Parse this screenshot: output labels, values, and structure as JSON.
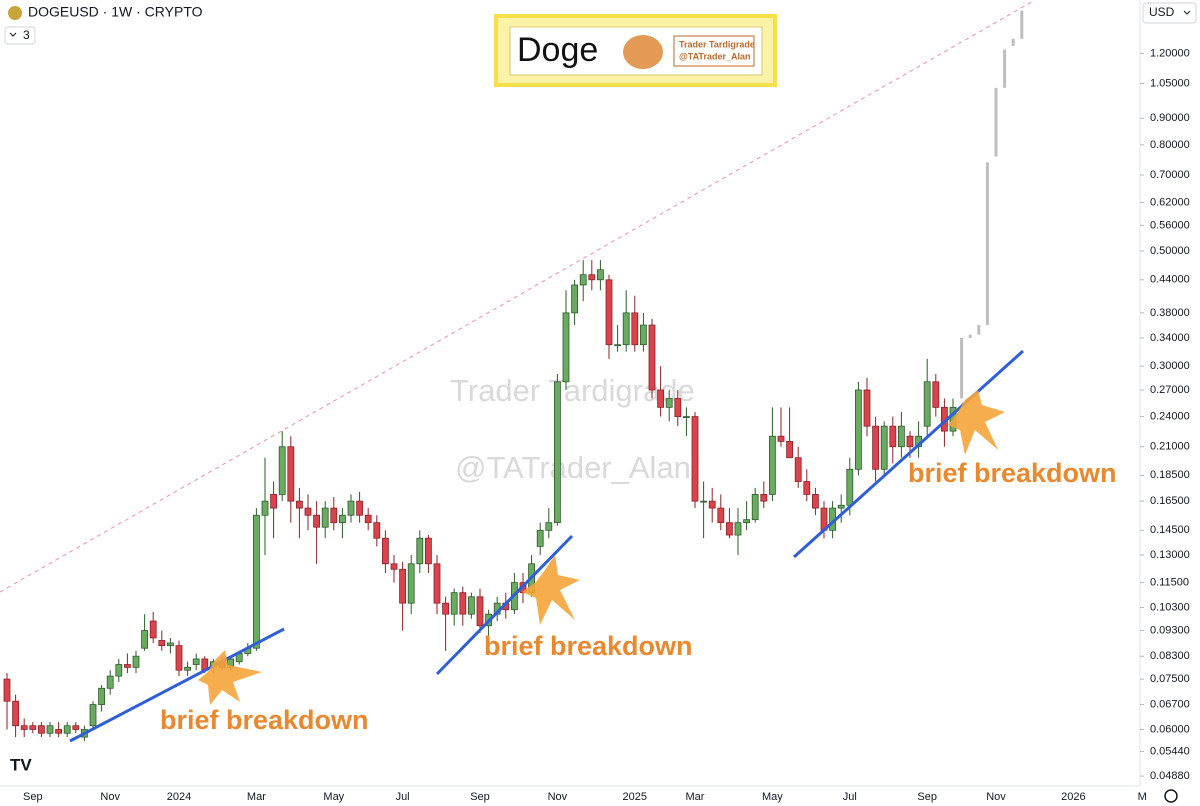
{
  "header": {
    "symbol": "DOGEUSD · 1W · CRYPTO",
    "indicator_count": 3,
    "currency": "USD"
  },
  "logo": {
    "title": "Doge",
    "line1": "Trader Tardigrade",
    "line2": "@TATrader_Alan"
  },
  "watermark": [
    "Trader Tardigrade",
    "@TATrader_Alan"
  ],
  "chart_data": {
    "type": "candlestick",
    "log_scale": true,
    "up_color": "#6aab62",
    "down_color": "#d9434b",
    "projection_color": "#bdbdbd",
    "annotations": [
      "brief breakdown",
      "brief breakdown",
      "brief breakdown"
    ],
    "ylim": [
      0.0467,
      1.52
    ],
    "yticks": [
      {
        "value": 0.0488,
        "label": "0.04880"
      },
      {
        "value": 0.0544,
        "label": "0.05440"
      },
      {
        "value": 0.06,
        "label": "0.06000"
      },
      {
        "value": 0.067,
        "label": "0.06700"
      },
      {
        "value": 0.075,
        "label": "0.07500"
      },
      {
        "value": 0.083,
        "label": "0.08300"
      },
      {
        "value": 0.093,
        "label": "0.09300"
      },
      {
        "value": 0.103,
        "label": "0.10300"
      },
      {
        "value": 0.115,
        "label": "0.11500"
      },
      {
        "value": 0.13,
        "label": "0.13000"
      },
      {
        "value": 0.145,
        "label": "0.14500"
      },
      {
        "value": 0.165,
        "label": "0.16500"
      },
      {
        "value": 0.185,
        "label": "0.18500"
      },
      {
        "value": 0.21,
        "label": "0.21000"
      },
      {
        "value": 0.24,
        "label": "0.24000"
      },
      {
        "value": 0.27,
        "label": "0.27000"
      },
      {
        "value": 0.3,
        "label": "0.30000"
      },
      {
        "value": 0.34,
        "label": "0.34000"
      },
      {
        "value": 0.38,
        "label": "0.38000"
      },
      {
        "value": 0.44,
        "label": "0.44000"
      },
      {
        "value": 0.5,
        "label": "0.50000"
      },
      {
        "value": 0.56,
        "label": "0.56000"
      },
      {
        "value": 0.62,
        "label": "0.62000"
      },
      {
        "value": 0.7,
        "label": "0.70000"
      },
      {
        "value": 0.8,
        "label": "0.80000"
      },
      {
        "value": 0.9,
        "label": "0.90000"
      },
      {
        "value": 1.05,
        "label": "1.05000"
      },
      {
        "value": 1.2,
        "label": "1.20000"
      }
    ],
    "categories": [
      null,
      null,
      null,
      "Sep",
      null,
      null,
      null,
      null,
      null,
      null,
      null,
      null,
      "Nov",
      null,
      null,
      null,
      null,
      null,
      null,
      null,
      "2024",
      null,
      null,
      null,
      null,
      null,
      null,
      null,
      null,
      "Mar",
      null,
      null,
      null,
      null,
      null,
      null,
      null,
      null,
      "May",
      null,
      null,
      null,
      null,
      null,
      null,
      null,
      "Jul",
      null,
      null,
      null,
      null,
      null,
      null,
      null,
      null,
      "Sep",
      null,
      null,
      null,
      null,
      null,
      null,
      null,
      null,
      "Nov",
      null,
      null,
      null,
      null,
      null,
      null,
      null,
      null,
      "2025",
      null,
      null,
      null,
      null,
      null,
      null,
      "Mar",
      null,
      null,
      null,
      null,
      null,
      null,
      null,
      null,
      "May",
      null,
      null,
      null,
      null,
      null,
      null,
      null,
      null,
      "Jul",
      null,
      null,
      null,
      null,
      null,
      null,
      null,
      null,
      "Sep",
      null,
      null,
      null,
      null,
      null,
      null,
      null,
      "Nov",
      null,
      null,
      null,
      null,
      null,
      null,
      null,
      null,
      "2026",
      null,
      null,
      null,
      null,
      null,
      null,
      null,
      "M"
    ],
    "candles": [
      [
        0.075,
        0.077,
        0.06,
        0.068
      ],
      [
        0.068,
        0.07,
        0.058,
        0.061
      ],
      [
        0.061,
        0.063,
        0.058,
        0.06
      ],
      [
        0.061,
        0.062,
        0.059,
        0.06
      ],
      [
        0.061,
        0.062,
        0.058,
        0.059
      ],
      [
        0.059,
        0.062,
        0.058,
        0.061
      ],
      [
        0.06,
        0.062,
        0.058,
        0.059
      ],
      [
        0.059,
        0.062,
        0.058,
        0.061
      ],
      [
        0.061,
        0.062,
        0.059,
        0.06
      ],
      [
        0.058,
        0.061,
        0.057,
        0.06
      ],
      [
        0.061,
        0.068,
        0.06,
        0.067
      ],
      [
        0.067,
        0.073,
        0.065,
        0.072
      ],
      [
        0.072,
        0.078,
        0.07,
        0.076
      ],
      [
        0.076,
        0.082,
        0.074,
        0.08
      ],
      [
        0.08,
        0.084,
        0.077,
        0.079
      ],
      [
        0.079,
        0.085,
        0.077,
        0.083
      ],
      [
        0.086,
        0.1,
        0.085,
        0.093
      ],
      [
        0.097,
        0.101,
        0.088,
        0.09
      ],
      [
        0.089,
        0.093,
        0.085,
        0.087
      ],
      [
        0.087,
        0.09,
        0.084,
        0.088
      ],
      [
        0.087,
        0.089,
        0.076,
        0.078
      ],
      [
        0.078,
        0.081,
        0.076,
        0.079
      ],
      [
        0.08,
        0.084,
        0.078,
        0.082
      ],
      [
        0.082,
        0.083,
        0.077,
        0.078
      ],
      [
        0.079,
        0.082,
        0.077,
        0.081
      ],
      [
        0.081,
        0.083,
        0.078,
        0.079
      ],
      [
        0.079,
        0.083,
        0.078,
        0.082
      ],
      [
        0.081,
        0.085,
        0.08,
        0.084
      ],
      [
        0.084,
        0.088,
        0.083,
        0.086
      ],
      [
        0.086,
        0.16,
        0.085,
        0.155
      ],
      [
        0.155,
        0.2,
        0.13,
        0.165
      ],
      [
        0.17,
        0.18,
        0.14,
        0.16
      ],
      [
        0.17,
        0.225,
        0.165,
        0.21
      ],
      [
        0.21,
        0.22,
        0.15,
        0.165
      ],
      [
        0.165,
        0.175,
        0.14,
        0.16
      ],
      [
        0.16,
        0.17,
        0.145,
        0.155
      ],
      [
        0.155,
        0.165,
        0.125,
        0.147
      ],
      [
        0.147,
        0.165,
        0.14,
        0.16
      ],
      [
        0.16,
        0.168,
        0.145,
        0.15
      ],
      [
        0.15,
        0.16,
        0.14,
        0.155
      ],
      [
        0.155,
        0.17,
        0.15,
        0.165
      ],
      [
        0.165,
        0.172,
        0.15,
        0.155
      ],
      [
        0.155,
        0.16,
        0.145,
        0.15
      ],
      [
        0.15,
        0.155,
        0.135,
        0.14
      ],
      [
        0.14,
        0.145,
        0.12,
        0.125
      ],
      [
        0.125,
        0.13,
        0.115,
        0.122
      ],
      [
        0.122,
        0.126,
        0.093,
        0.105
      ],
      [
        0.105,
        0.13,
        0.1,
        0.125
      ],
      [
        0.125,
        0.145,
        0.12,
        0.14
      ],
      [
        0.14,
        0.142,
        0.12,
        0.125
      ],
      [
        0.125,
        0.13,
        0.1,
        0.105
      ],
      [
        0.105,
        0.108,
        0.085,
        0.1
      ],
      [
        0.1,
        0.112,
        0.095,
        0.11
      ],
      [
        0.11,
        0.113,
        0.095,
        0.1
      ],
      [
        0.1,
        0.11,
        0.098,
        0.108
      ],
      [
        0.108,
        0.112,
        0.092,
        0.095
      ],
      [
        0.095,
        0.102,
        0.09,
        0.1
      ],
      [
        0.1,
        0.108,
        0.097,
        0.105
      ],
      [
        0.105,
        0.11,
        0.098,
        0.102
      ],
      [
        0.102,
        0.12,
        0.1,
        0.115
      ],
      [
        0.115,
        0.12,
        0.105,
        0.11
      ],
      [
        0.11,
        0.13,
        0.108,
        0.125
      ],
      [
        0.135,
        0.15,
        0.13,
        0.145
      ],
      [
        0.145,
        0.16,
        0.14,
        0.15
      ],
      [
        0.15,
        0.29,
        0.148,
        0.28
      ],
      [
        0.28,
        0.42,
        0.27,
        0.38
      ],
      [
        0.38,
        0.44,
        0.36,
        0.43
      ],
      [
        0.43,
        0.48,
        0.4,
        0.45
      ],
      [
        0.45,
        0.48,
        0.42,
        0.44
      ],
      [
        0.44,
        0.48,
        0.42,
        0.46
      ],
      [
        0.44,
        0.45,
        0.31,
        0.33
      ],
      [
        0.33,
        0.36,
        0.32,
        0.33
      ],
      [
        0.33,
        0.42,
        0.32,
        0.38
      ],
      [
        0.38,
        0.41,
        0.32,
        0.33
      ],
      [
        0.33,
        0.38,
        0.32,
        0.36
      ],
      [
        0.36,
        0.37,
        0.26,
        0.27
      ],
      [
        0.27,
        0.3,
        0.24,
        0.25
      ],
      [
        0.25,
        0.27,
        0.235,
        0.26
      ],
      [
        0.26,
        0.27,
        0.23,
        0.24
      ],
      [
        0.24,
        0.25,
        0.22,
        0.24
      ],
      [
        0.24,
        0.245,
        0.16,
        0.165
      ],
      [
        0.165,
        0.18,
        0.14,
        0.165
      ],
      [
        0.165,
        0.175,
        0.15,
        0.16
      ],
      [
        0.16,
        0.17,
        0.145,
        0.15
      ],
      [
        0.15,
        0.16,
        0.14,
        0.142
      ],
      [
        0.142,
        0.16,
        0.13,
        0.15
      ],
      [
        0.15,
        0.165,
        0.145,
        0.152
      ],
      [
        0.152,
        0.175,
        0.15,
        0.17
      ],
      [
        0.17,
        0.18,
        0.16,
        0.165
      ],
      [
        0.17,
        0.25,
        0.165,
        0.22
      ],
      [
        0.22,
        0.25,
        0.21,
        0.215
      ],
      [
        0.215,
        0.25,
        0.2,
        0.2
      ],
      [
        0.2,
        0.21,
        0.175,
        0.18
      ],
      [
        0.18,
        0.19,
        0.165,
        0.17
      ],
      [
        0.17,
        0.175,
        0.155,
        0.16
      ],
      [
        0.16,
        0.165,
        0.14,
        0.145
      ],
      [
        0.145,
        0.165,
        0.14,
        0.16
      ],
      [
        0.16,
        0.17,
        0.15,
        0.162
      ],
      [
        0.162,
        0.2,
        0.155,
        0.19
      ],
      [
        0.19,
        0.28,
        0.185,
        0.27
      ],
      [
        0.27,
        0.285,
        0.22,
        0.23
      ],
      [
        0.23,
        0.24,
        0.18,
        0.19
      ],
      [
        0.19,
        0.235,
        0.185,
        0.23
      ],
      [
        0.23,
        0.24,
        0.195,
        0.21
      ],
      [
        0.21,
        0.245,
        0.2,
        0.23
      ],
      [
        0.22,
        0.225,
        0.2,
        0.21
      ],
      [
        0.21,
        0.235,
        0.2,
        0.22
      ],
      [
        0.23,
        0.31,
        0.22,
        0.28
      ],
      [
        0.28,
        0.29,
        0.24,
        0.25
      ],
      [
        0.25,
        0.26,
        0.21,
        0.225
      ],
      [
        0.225,
        0.26,
        0.22,
        0.25
      ],
      null,
      null,
      null,
      null,
      null,
      null,
      null,
      null,
      null,
      null,
      null,
      null,
      null,
      null,
      null,
      null,
      null,
      null,
      null,
      null,
      null,
      null
    ],
    "projection": [
      null,
      null,
      null,
      null,
      null,
      null,
      null,
      null,
      null,
      null,
      null,
      null,
      null,
      null,
      null,
      null,
      null,
      null,
      null,
      null,
      null,
      null,
      null,
      null,
      null,
      null,
      null,
      null,
      null,
      null,
      null,
      null,
      null,
      null,
      null,
      null,
      null,
      null,
      null,
      null,
      null,
      null,
      null,
      null,
      null,
      null,
      null,
      null,
      null,
      null,
      null,
      null,
      null,
      null,
      null,
      null,
      null,
      null,
      null,
      null,
      null,
      null,
      null,
      null,
      null,
      null,
      null,
      null,
      null,
      null,
      null,
      null,
      null,
      null,
      null,
      null,
      null,
      null,
      null,
      null,
      null,
      null,
      null,
      null,
      null,
      null,
      null,
      null,
      null,
      null,
      null,
      null,
      null,
      null,
      null,
      null,
      null,
      null,
      null,
      null,
      null,
      null,
      null,
      null,
      null,
      null,
      null,
      null,
      null,
      null,
      null,
      [
        0.26,
        0.34
      ],
      [
        0.34,
        0.345
      ],
      [
        0.345,
        0.36
      ],
      [
        0.36,
        0.74
      ],
      [
        0.76,
        1.03
      ],
      [
        1.03,
        1.22
      ],
      [
        1.24,
        1.28
      ],
      [
        1.28,
        1.45
      ],
      null,
      null,
      null,
      null,
      null,
      null,
      null,
      null,
      null,
      null,
      null,
      null,
      null,
      null
    ]
  }
}
